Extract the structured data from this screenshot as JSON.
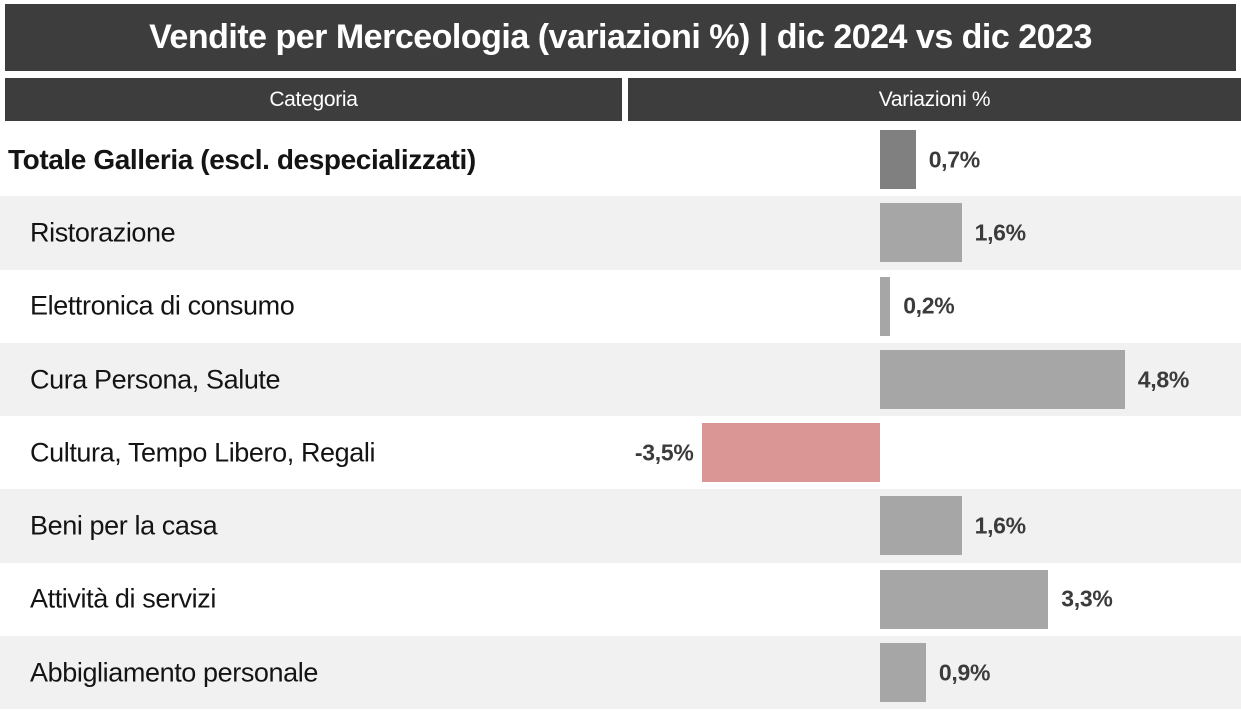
{
  "title": {
    "text": "Vendite per Merceologia (variazioni %) | dic 2024 vs dic 2023"
  },
  "table_header": {
    "category_label": "Categoria",
    "value_label": "Variazioni %"
  },
  "colors": {
    "header_bg": "#3d3d3d",
    "header_text": "#ffffff",
    "bar_positive": "#a6a6a6",
    "bar_emphasis": "#808080",
    "bar_negative": "#d99694",
    "row_alt_bg": "#f1f1f1",
    "value_text": "#3b3b3b",
    "category_text": "#141414"
  },
  "chart_data": {
    "type": "bar",
    "orientation": "horizontal",
    "title": "Vendite per Merceologia (variazioni %) | dic 2024 vs dic 2023",
    "xlabel": "Variazioni %",
    "ylabel": "Categoria",
    "categories": [
      "Totale Galleria (escl. despecializzati)",
      "Ristorazione",
      "Elettronica di consumo",
      "Cura Persona, Salute",
      "Cultura, Tempo Libero, Regali",
      "Beni per la casa",
      "Attività di servizi",
      "Abbigliamento personale"
    ],
    "values": [
      0.7,
      1.6,
      0.2,
      4.8,
      -3.5,
      1.6,
      3.3,
      0.9
    ],
    "value_labels": [
      "0,7%",
      "1,6%",
      "0,2%",
      "4,8%",
      "-3,5%",
      "1,6%",
      "3,3%",
      "0,9%"
    ],
    "unit": "%",
    "emphasized_category_index": 0,
    "negative_color_categories": [
      "Cultura, Tempo Libero, Regali"
    ],
    "xlim": [
      -5,
      7.1
    ],
    "grid": false,
    "legend": "none",
    "alternating_row_shading": true
  }
}
